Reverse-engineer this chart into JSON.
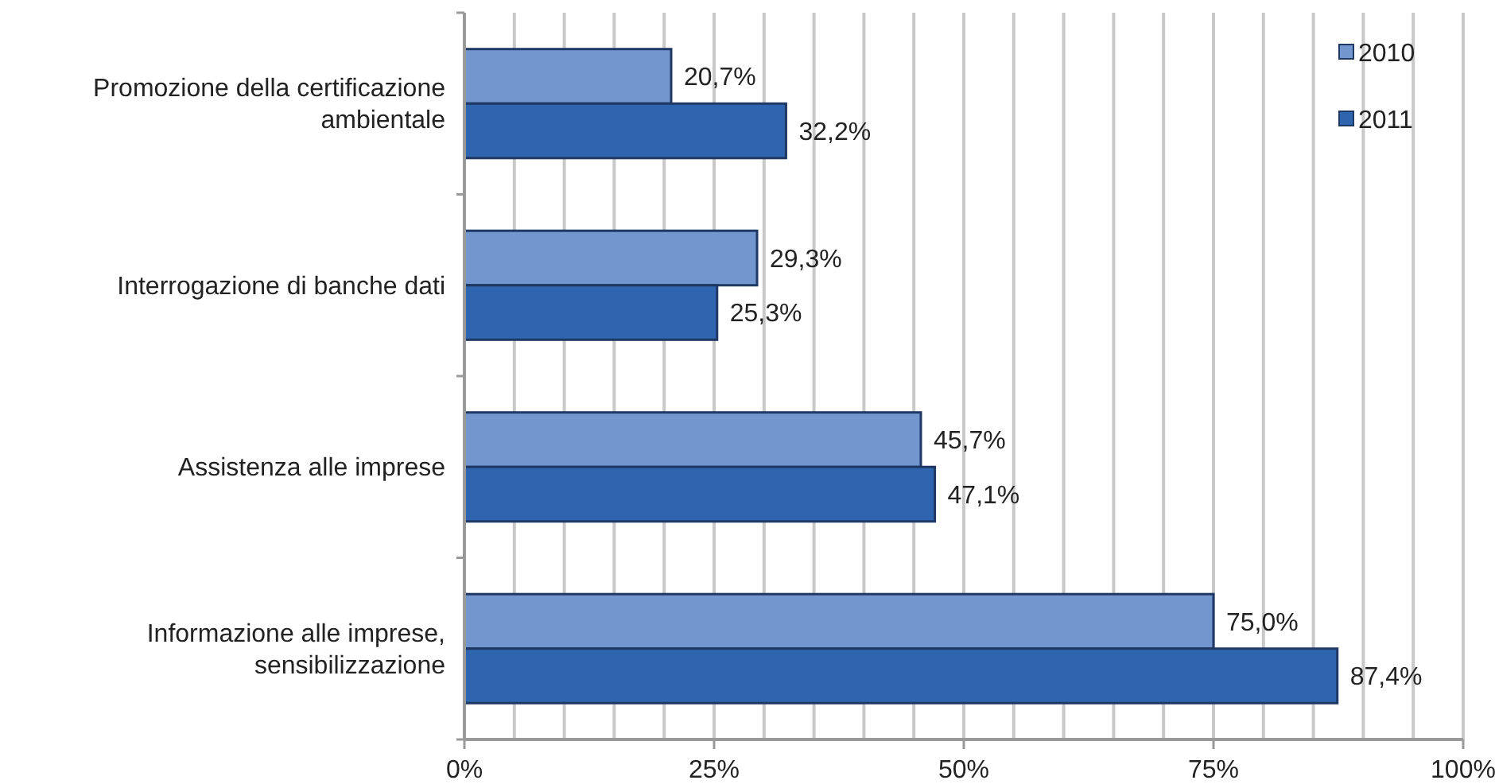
{
  "chart_data": {
    "type": "bar",
    "orientation": "horizontal",
    "categories": [
      "Promozione della certificazione ambientale",
      "Interrogazione di banche dati",
      "Assistenza alle imprese",
      "Informazione alle imprese, sensibilizzazione"
    ],
    "series": [
      {
        "name": "2010",
        "color": "#7396cf",
        "values": [
          20.7,
          29.3,
          45.7,
          75.0
        ],
        "value_labels": [
          "20,7%",
          "29,3%",
          "45,7%",
          "75,0%"
        ]
      },
      {
        "name": "2011",
        "color": "#2f64ae",
        "values": [
          32.2,
          25.3,
          47.1,
          87.4
        ],
        "value_labels": [
          "32,2%",
          "25,3%",
          "47,1%",
          "87,4%"
        ]
      }
    ],
    "xlim": [
      0,
      100
    ],
    "xticks": [
      {
        "value": 0,
        "label": "0%"
      },
      {
        "value": 5,
        "label": null
      },
      {
        "value": 10,
        "label": null
      },
      {
        "value": 15,
        "label": null
      },
      {
        "value": 20,
        "label": null
      },
      {
        "value": 25,
        "label": "25%"
      },
      {
        "value": 30,
        "label": null
      },
      {
        "value": 35,
        "label": null
      },
      {
        "value": 40,
        "label": null
      },
      {
        "value": 45,
        "label": null
      },
      {
        "value": 50,
        "label": "50%"
      },
      {
        "value": 55,
        "label": null
      },
      {
        "value": 60,
        "label": null
      },
      {
        "value": 65,
        "label": null
      },
      {
        "value": 70,
        "label": null
      },
      {
        "value": 75,
        "label": "75%"
      },
      {
        "value": 80,
        "label": null
      },
      {
        "value": 85,
        "label": null
      },
      {
        "value": 90,
        "label": null
      },
      {
        "value": 95,
        "label": null
      },
      {
        "value": 100,
        "label": "100%"
      }
    ],
    "grid": "x",
    "legend": "top right"
  }
}
